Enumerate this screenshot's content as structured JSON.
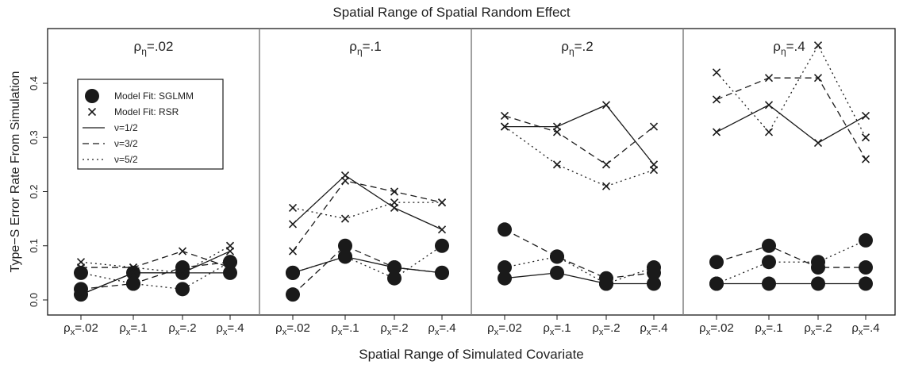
{
  "chart_data": {
    "type": "line",
    "title": "Spatial Range of Spatial Random Effect",
    "xlabel": "Spatial Range of Simulated Covariate",
    "ylabel": "Type−S Error Rate From Simulation",
    "ylim": [
      0.0,
      0.45
    ],
    "yticks": [
      0.0,
      0.1,
      0.2,
      0.3,
      0.4
    ],
    "ytick_labels": [
      "0.0",
      "0.1",
      "0.2",
      "0.3",
      "0.4"
    ],
    "categories": [
      "ρx=.02",
      "ρx=.1",
      "ρx=.2",
      "ρx=.4"
    ],
    "category_parts": [
      {
        "base": "ρ",
        "sub": "x",
        "rest": "=.02"
      },
      {
        "base": "ρ",
        "sub": "x",
        "rest": "=.1"
      },
      {
        "base": "ρ",
        "sub": "x",
        "rest": "=.2"
      },
      {
        "base": "ρ",
        "sub": "x",
        "rest": "=.4"
      }
    ],
    "legend": {
      "placement": "top-left of first panel",
      "entries": [
        {
          "label": "Model Fit: SGLMM",
          "kind": "marker",
          "marker": "circle"
        },
        {
          "label": "Model Fit: RSR",
          "kind": "marker",
          "marker": "x"
        },
        {
          "label": "ν=1/2",
          "kind": "line",
          "dash": "solid"
        },
        {
          "label": "ν=3/2",
          "kind": "line",
          "dash": "dashed"
        },
        {
          "label": "ν=5/2",
          "kind": "line",
          "dash": "dotted"
        }
      ]
    },
    "panels": [
      {
        "label": "ρη=.02",
        "label_parts": {
          "base": "ρ",
          "sub": "η",
          "rest": "=.02"
        },
        "series": [
          {
            "model": "SGLMM",
            "nu": "1/2",
            "values": [
              0.01,
              0.05,
              0.05,
              0.05
            ]
          },
          {
            "model": "SGLMM",
            "nu": "3/2",
            "values": [
              0.02,
              0.03,
              0.06,
              0.07
            ]
          },
          {
            "model": "SGLMM",
            "nu": "5/2",
            "values": [
              0.05,
              0.03,
              0.02,
              0.07
            ]
          },
          {
            "model": "RSR",
            "nu": "1/2",
            "values": [
              0.01,
              0.05,
              0.05,
              0.09
            ]
          },
          {
            "model": "RSR",
            "nu": "3/2",
            "values": [
              0.06,
              0.06,
              0.09,
              0.06
            ]
          },
          {
            "model": "RSR",
            "nu": "5/2",
            "values": [
              0.07,
              0.06,
              0.05,
              0.1
            ]
          }
        ]
      },
      {
        "label": "ρη=.1",
        "label_parts": {
          "base": "ρ",
          "sub": "η",
          "rest": "=.1"
        },
        "series": [
          {
            "model": "SGLMM",
            "nu": "1/2",
            "values": [
              0.05,
              0.08,
              0.06,
              0.05
            ]
          },
          {
            "model": "SGLMM",
            "nu": "3/2",
            "values": [
              0.01,
              0.1,
              0.06,
              0.05
            ]
          },
          {
            "model": "SGLMM",
            "nu": "5/2",
            "values": [
              0.05,
              0.08,
              0.04,
              0.1
            ]
          },
          {
            "model": "RSR",
            "nu": "1/2",
            "values": [
              0.14,
              0.23,
              0.17,
              0.13
            ]
          },
          {
            "model": "RSR",
            "nu": "3/2",
            "values": [
              0.09,
              0.22,
              0.2,
              0.18
            ]
          },
          {
            "model": "RSR",
            "nu": "5/2",
            "values": [
              0.17,
              0.15,
              0.18,
              0.18
            ]
          }
        ]
      },
      {
        "label": "ρη=.2",
        "label_parts": {
          "base": "ρ",
          "sub": "η",
          "rest": "=.2"
        },
        "series": [
          {
            "model": "SGLMM",
            "nu": "1/2",
            "values": [
              0.04,
              0.05,
              0.03,
              0.03
            ]
          },
          {
            "model": "SGLMM",
            "nu": "3/2",
            "values": [
              0.13,
              0.08,
              0.04,
              0.05
            ]
          },
          {
            "model": "SGLMM",
            "nu": "5/2",
            "values": [
              0.06,
              0.08,
              0.03,
              0.06
            ]
          },
          {
            "model": "RSR",
            "nu": "1/2",
            "values": [
              0.32,
              0.32,
              0.36,
              0.25
            ]
          },
          {
            "model": "RSR",
            "nu": "3/2",
            "values": [
              0.34,
              0.31,
              0.25,
              0.32
            ]
          },
          {
            "model": "RSR",
            "nu": "5/2",
            "values": [
              0.32,
              0.25,
              0.21,
              0.24
            ]
          }
        ]
      },
      {
        "label": "ρη=.4",
        "label_parts": {
          "base": "ρ",
          "sub": "η",
          "rest": "=.4"
        },
        "series": [
          {
            "model": "SGLMM",
            "nu": "1/2",
            "values": [
              0.03,
              0.03,
              0.03,
              0.03
            ]
          },
          {
            "model": "SGLMM",
            "nu": "3/2",
            "values": [
              0.07,
              0.1,
              0.06,
              0.06
            ]
          },
          {
            "model": "SGLMM",
            "nu": "5/2",
            "values": [
              0.03,
              0.07,
              0.07,
              0.11
            ]
          },
          {
            "model": "RSR",
            "nu": "1/2",
            "values": [
              0.31,
              0.36,
              0.29,
              0.34
            ]
          },
          {
            "model": "RSR",
            "nu": "3/2",
            "values": [
              0.37,
              0.41,
              0.41,
              0.26
            ]
          },
          {
            "model": "RSR",
            "nu": "5/2",
            "values": [
              0.42,
              0.31,
              0.47,
              0.3
            ]
          }
        ]
      }
    ],
    "grid": false,
    "colors": {
      "ink": "#1a1a1a",
      "divider": "#808080",
      "background": "#ffffff"
    }
  }
}
